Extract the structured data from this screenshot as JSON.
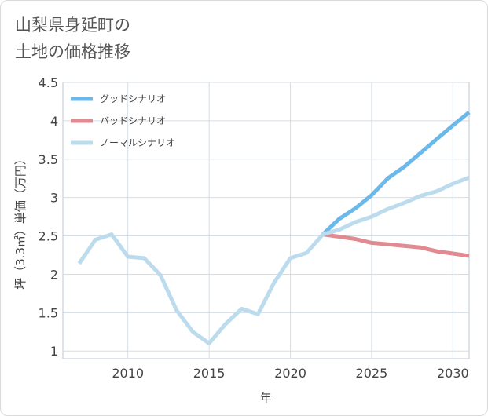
{
  "title_lines": [
    "山梨県身延町の",
    "土地の価格推移"
  ],
  "chart_data": {
    "type": "line",
    "title": "山梨県身延町の土地の価格推移",
    "xlabel": "年",
    "ylabel": "坪（3.3㎡）単価（万円）",
    "xlim": [
      2006,
      2031
    ],
    "ylim": [
      0.9,
      4.5
    ],
    "xticks": [
      2010,
      2015,
      2020,
      2025,
      2030
    ],
    "xtick_labels": [
      "2010",
      "2015",
      "2020",
      "2025",
      "2030"
    ],
    "yticks": [
      1,
      1.5,
      2,
      2.5,
      3,
      3.5,
      4,
      4.5
    ],
    "ytick_labels": [
      "1",
      "1.5",
      "2",
      "2.5",
      "3",
      "3.5",
      "4",
      "4.5"
    ],
    "grid": true,
    "legend_position": "top-left",
    "series": [
      {
        "name": "グッドシナリオ",
        "color": "#6bb8ea",
        "x": [
          2022,
          2023,
          2024,
          2025,
          2026,
          2027,
          2028,
          2029,
          2030,
          2031
        ],
        "y": [
          2.52,
          2.72,
          2.86,
          3.03,
          3.25,
          3.4,
          3.58,
          3.76,
          3.94,
          4.11
        ]
      },
      {
        "name": "バッドシナリオ",
        "color": "#e08a92",
        "x": [
          2022,
          2023,
          2024,
          2025,
          2026,
          2027,
          2028,
          2029,
          2030,
          2031
        ],
        "y": [
          2.52,
          2.49,
          2.46,
          2.41,
          2.39,
          2.37,
          2.35,
          2.3,
          2.27,
          2.24
        ]
      },
      {
        "name": "ノーマルシナリオ",
        "color": "#bcdcee",
        "x": [
          2007,
          2008,
          2009,
          2010,
          2011,
          2012,
          2013,
          2014,
          2015,
          2016,
          2017,
          2018,
          2019,
          2020,
          2021,
          2022,
          2023,
          2024,
          2025,
          2026,
          2027,
          2028,
          2029,
          2030,
          2031
        ],
        "y": [
          2.14,
          2.45,
          2.52,
          2.23,
          2.21,
          1.99,
          1.53,
          1.25,
          1.1,
          1.35,
          1.55,
          1.48,
          1.89,
          2.21,
          2.28,
          2.52,
          2.58,
          2.68,
          2.75,
          2.85,
          2.93,
          3.02,
          3.08,
          3.18,
          3.26
        ]
      }
    ]
  }
}
